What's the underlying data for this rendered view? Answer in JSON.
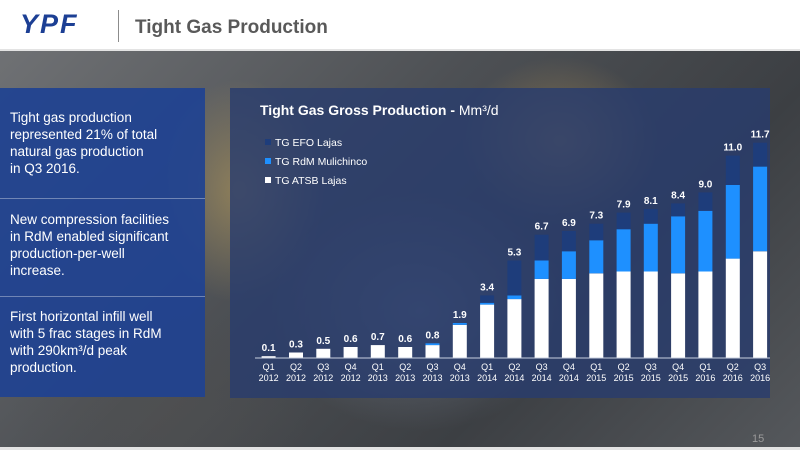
{
  "header": {
    "logo": "YPF",
    "title": "Tight Gas Production"
  },
  "left_panels": [
    {
      "lines": [
        "Tight gas production",
        "represented 21% of total",
        "natural gas production",
        "in Q3 2016."
      ]
    },
    {
      "lines": [
        "New compression facilities",
        "in RdM enabled significant",
        "production-per-well",
        "increase."
      ]
    },
    {
      "lines": [
        "First horizontal infill well",
        "with 5 frac stages in RdM",
        "with 290km³/d peak",
        "production."
      ]
    }
  ],
  "page_number": "15",
  "colors": {
    "brand_blue": "#1c3f94",
    "series_efo": "#1e3d7b",
    "series_rdm": "#1e90ff",
    "series_atsb": "#ffffff"
  },
  "chart_data": {
    "type": "bar",
    "stacked": true,
    "title": "Tight Gas Gross Production - ",
    "title_unit": "Mm³/d",
    "legend_position": "top-left",
    "grid": false,
    "categories": [
      [
        "Q1",
        "2012"
      ],
      [
        "Q2",
        "2012"
      ],
      [
        "Q3",
        "2012"
      ],
      [
        "Q4",
        "2012"
      ],
      [
        "Q1",
        "2013"
      ],
      [
        "Q2",
        "2013"
      ],
      [
        "Q3",
        "2013"
      ],
      [
        "Q4",
        "2013"
      ],
      [
        "Q1",
        "2014"
      ],
      [
        "Q2",
        "2014"
      ],
      [
        "Q3",
        "2014"
      ],
      [
        "Q4",
        "2014"
      ],
      [
        "Q1",
        "2015"
      ],
      [
        "Q2",
        "2015"
      ],
      [
        "Q3",
        "2015"
      ],
      [
        "Q4",
        "2015"
      ],
      [
        "Q1",
        "2016"
      ],
      [
        "Q2",
        "2016"
      ],
      [
        "Q3",
        "2016"
      ]
    ],
    "totals": [
      "0.1",
      "0.3",
      "0.5",
      "0.6",
      "0.7",
      "0.6",
      "0.8",
      "1.9",
      "3.4",
      "5.3",
      "6.7",
      "6.9",
      "7.3",
      "7.9",
      "8.1",
      "8.4",
      "9.0",
      "11.0",
      "11.7"
    ],
    "ylim": [
      0,
      12.5
    ],
    "series": [
      {
        "name": "TG ATSB Lajas",
        "values": [
          0.1,
          0.3,
          0.5,
          0.6,
          0.7,
          0.6,
          0.7,
          1.8,
          2.9,
          3.2,
          4.3,
          4.3,
          4.6,
          4.7,
          4.7,
          4.6,
          4.7,
          5.4,
          5.8
        ]
      },
      {
        "name": "TG RdM Mulichinco",
        "values": [
          0,
          0,
          0,
          0,
          0,
          0,
          0.1,
          0.1,
          0.1,
          0.2,
          1.0,
          1.5,
          1.8,
          2.3,
          2.6,
          3.1,
          3.3,
          4.0,
          4.6
        ]
      },
      {
        "name": "TG EFO Lajas",
        "values": [
          0,
          0,
          0,
          0,
          0,
          0,
          0,
          0,
          0.4,
          1.9,
          1.4,
          1.1,
          0.9,
          0.9,
          0.8,
          0.7,
          1.0,
          1.6,
          1.3
        ]
      }
    ]
  }
}
